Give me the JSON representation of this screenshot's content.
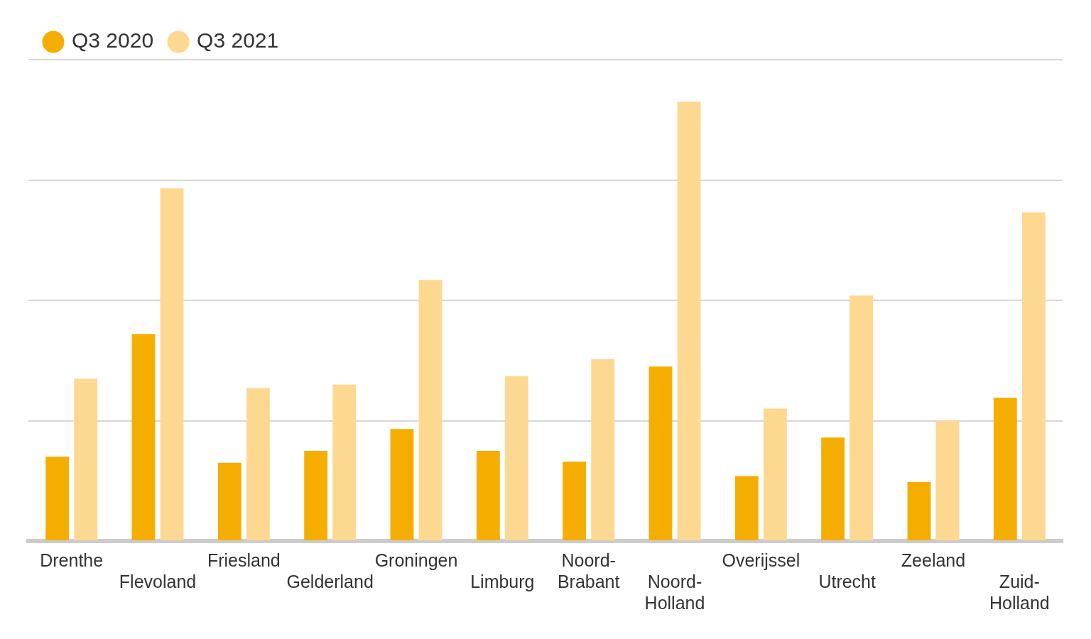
{
  "chart_data": {
    "type": "bar",
    "categories": [
      "Drenthe",
      "Flevoland",
      "Friesland",
      "Gelderland",
      "Groningen",
      "Limburg",
      "Noord-Brabant",
      "Noord-Holland",
      "Overijssel",
      "Utrecht",
      "Zeeland",
      "Zuid-Holland"
    ],
    "series": [
      {
        "name": "Q3 2020",
        "color": "#f5ae00",
        "values": [
          0.7,
          1.72,
          0.65,
          0.75,
          0.93,
          0.75,
          0.66,
          1.45,
          0.54,
          0.86,
          0.49,
          1.19
        ]
      },
      {
        "name": "Q3 2021",
        "color": "#fdd891",
        "values": [
          1.35,
          2.93,
          1.27,
          1.3,
          2.17,
          1.37,
          1.51,
          3.65,
          1.1,
          2.04,
          1.0,
          2.73
        ]
      }
    ],
    "ylim": [
      0,
      4
    ],
    "yticks": [
      0,
      1,
      2,
      3,
      4
    ],
    "grid": true,
    "legend": "upper left",
    "tick_labels": "x"
  }
}
